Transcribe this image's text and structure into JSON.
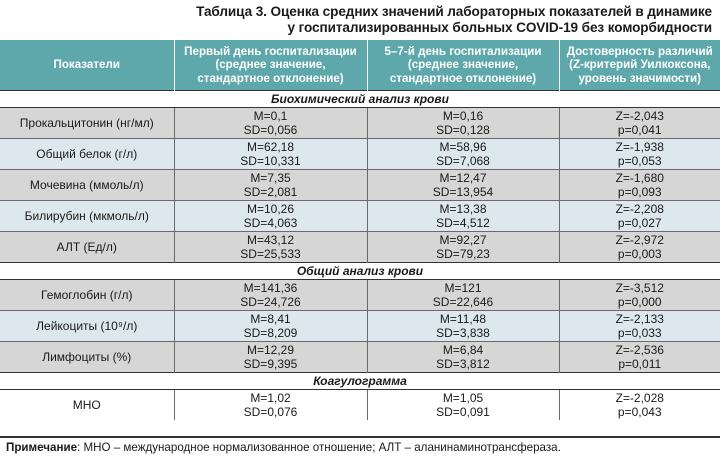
{
  "title": {
    "line1": "Таблица 3. Оценка средних значений лабораторных показателей в динамике",
    "line2": "у госпитализированных больных COVID-19 без коморбидности"
  },
  "headers": {
    "col1": "Показатели",
    "col2_l1": "Первый день госпитализации",
    "col2_l2": "(среднее значение,",
    "col2_l3": "стандартное отклонение)",
    "col3_l1": "5–7-й день госпитализации",
    "col3_l2": "(среднее значение,",
    "col3_l3": "стандартное отклонение)",
    "col4_l1": "Достоверность различий",
    "col4_l2": "(Z-критерий Уилкоксона,",
    "col4_l3": "уровень значимости)"
  },
  "sections": [
    {
      "title": "Биохимический анализ крови",
      "rows": [
        {
          "name": "Прокальцитонин (нг/мл)",
          "m1": "M=0,1",
          "sd1": "SD=0,056",
          "m2": "M=0,16",
          "sd2": "SD=0,128",
          "z": "Z=-2,043",
          "p": "p=0,041"
        },
        {
          "name": "Общий белок (г/л)",
          "m1": "M=62,18",
          "sd1": "SD=10,331",
          "m2": "M=58,96",
          "sd2": "SD=7,068",
          "z": "Z=-1,938",
          "p": "p=0,053"
        },
        {
          "name": "Мочевина (ммоль/л)",
          "m1": "M=7,35",
          "sd1": "SD=2,081",
          "m2": "M=12,47",
          "sd2": "SD=13,954",
          "z": "Z=-1,680",
          "p": "p=0,093"
        },
        {
          "name": "Билирубин (мкмоль/л)",
          "m1": "M=10,26",
          "sd1": "SD=4,063",
          "m2": "M=13,38",
          "sd2": "SD=4,512",
          "z": "Z=-2,208",
          "p": "p=0,027"
        },
        {
          "name": "АЛТ (Ед/л)",
          "m1": "M=43,12",
          "sd1": "SD=25,533",
          "m2": "M=92,27",
          "sd2": "SD=79,23",
          "z": "Z=-2,972",
          "p": "p=0,003"
        }
      ]
    },
    {
      "title": "Общий анализ крови",
      "rows": [
        {
          "name": "Гемоглобин (г/л)",
          "m1": "M=141,36",
          "sd1": "SD=24,726",
          "m2": "M=121",
          "sd2": "SD=22,646",
          "z": "Z=-3,512",
          "p": "p=0,000"
        },
        {
          "name": "Лейкоциты (10⁹/л)",
          "m1": "M=8,41",
          "sd1": "SD=8,209",
          "m2": "M=11,48",
          "sd2": "SD=3,838",
          "z": "Z=-2,133",
          "p": "p=0,033"
        },
        {
          "name": "Лимфоциты (%)",
          "m1": "M=12,29",
          "sd1": "SD=9,395",
          "m2": "M=6,84",
          "sd2": "SD=3,812",
          "z": "Z=-2,536",
          "p": "p=0,011"
        }
      ]
    },
    {
      "title": "Коагулограмма",
      "rows": [
        {
          "name": "МНО",
          "m1": "M=1,02",
          "sd1": "SD=0,076",
          "m2": "M=1,05",
          "sd2": "SD=0,091",
          "z": "Z=-2,028",
          "p": "p=0,043"
        }
      ]
    }
  ],
  "note": {
    "label": "Примечание",
    "text": ": МНО – международное нормализованное отношение; АЛТ – аланинаминотрансфераза."
  },
  "colors": {
    "header_bg": "#5ea8ab",
    "row_gray": "#d6d6d6",
    "row_blue": "#dde8ee"
  }
}
